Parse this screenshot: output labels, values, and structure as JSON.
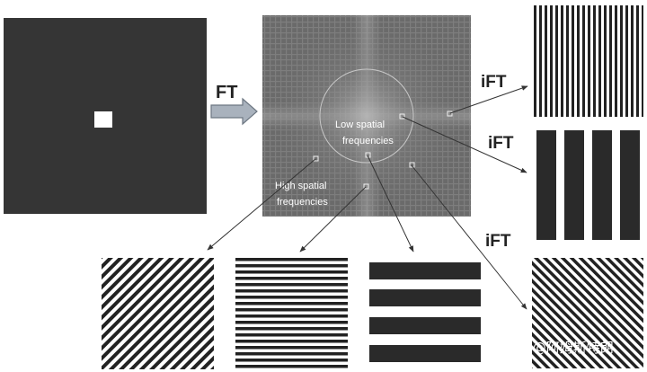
{
  "labels": {
    "ft": "FT",
    "ift": "iFT",
    "low_line1": "Low spatial",
    "low_line2": "frequencies",
    "high_line1": "High spatial",
    "high_line2": "frequencies"
  },
  "watermark": "知乎 @阿姆斯特朗",
  "colors": {
    "dark": "#353535",
    "spectrum_bg": "#6b6b6b",
    "arrow_fill": "#a9b2bd",
    "arrow_stroke": "#6d7782",
    "white": "#ffffff"
  }
}
